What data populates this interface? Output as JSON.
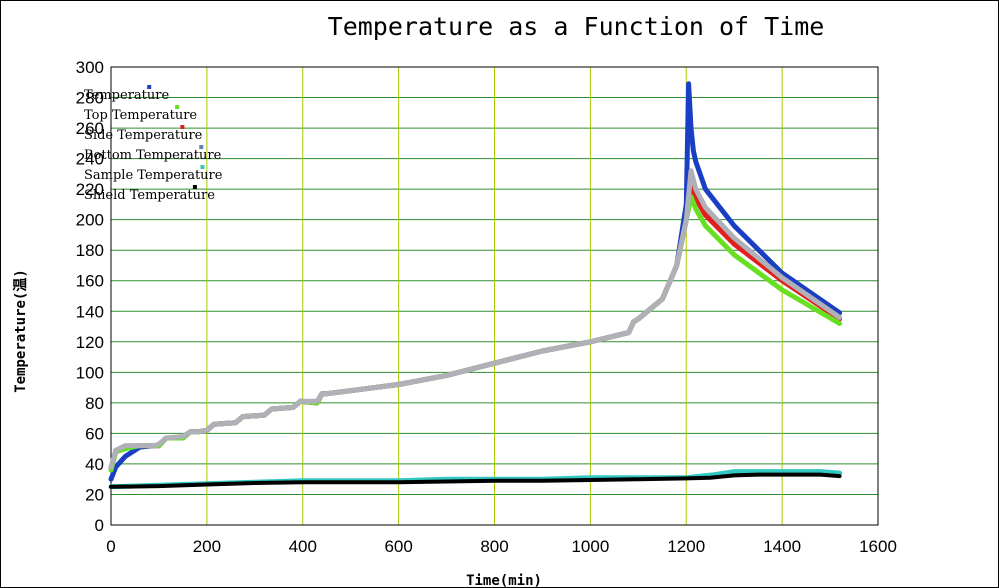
{
  "chart_data": {
    "type": "line",
    "title": "Temperature  as a Function of Time",
    "xlabel": "Time(min)",
    "ylabel": "Temperature(温)",
    "xlim": [
      0,
      1600
    ],
    "ylim": [
      0,
      300
    ],
    "x_ticks": [
      0,
      200,
      400,
      600,
      800,
      1000,
      1200,
      1400,
      1600
    ],
    "y_ticks": [
      0,
      20,
      40,
      60,
      80,
      100,
      120,
      140,
      160,
      180,
      200,
      220,
      240,
      260,
      280,
      300
    ],
    "grid": true,
    "grid_colors": {
      "vertical": "#a8c800",
      "horizontal": "#2f8f2f"
    },
    "legend_position": "top-left",
    "series": [
      {
        "name": "Temperature",
        "color": "#1a3fc4",
        "x": [
          0,
          10,
          30,
          60,
          90,
          100,
          115,
          150,
          165,
          180,
          200,
          215,
          260,
          275,
          320,
          335,
          380,
          395,
          430,
          440,
          450,
          500,
          600,
          700,
          800,
          900,
          1000,
          1080,
          1090,
          1100,
          1150,
          1180,
          1200,
          1205,
          1210,
          1215,
          1220,
          1240,
          1300,
          1400,
          1520
        ],
        "y": [
          30,
          38,
          45,
          51,
          52,
          52,
          57,
          57,
          61,
          61,
          62,
          66,
          67,
          71,
          72,
          76,
          77,
          81,
          80,
          86,
          86,
          88,
          92,
          98,
          106,
          114,
          120,
          126,
          133,
          135,
          148,
          170,
          210,
          289,
          260,
          245,
          238,
          220,
          196,
          165,
          139
        ]
      },
      {
        "name": "Top Temperature",
        "color": "#66e020",
        "x": [
          0,
          10,
          30,
          60,
          90,
          100,
          115,
          150,
          165,
          180,
          200,
          215,
          260,
          275,
          320,
          335,
          380,
          395,
          430,
          440,
          450,
          500,
          600,
          700,
          800,
          900,
          1000,
          1080,
          1090,
          1100,
          1150,
          1180,
          1200,
          1210,
          1220,
          1240,
          1300,
          1400,
          1520
        ],
        "y": [
          36,
          48,
          50,
          52,
          52,
          52,
          57,
          57,
          61,
          61,
          62,
          66,
          67,
          71,
          72,
          76,
          77,
          81,
          80,
          86,
          86,
          88,
          92,
          98,
          106,
          114,
          120,
          126,
          133,
          135,
          148,
          170,
          200,
          215,
          207,
          196,
          177,
          154,
          132
        ]
      },
      {
        "name": "Side Temperature",
        "color": "#e02020",
        "x": [
          0,
          10,
          30,
          60,
          90,
          100,
          115,
          150,
          165,
          180,
          200,
          215,
          260,
          275,
          320,
          335,
          380,
          395,
          430,
          440,
          450,
          500,
          600,
          700,
          800,
          900,
          1000,
          1080,
          1090,
          1100,
          1150,
          1180,
          1200,
          1210,
          1220,
          1240,
          1300,
          1400,
          1520
        ],
        "y": [
          37,
          48,
          51,
          52,
          52,
          52,
          57,
          57,
          61,
          61,
          62,
          66,
          67,
          71,
          72,
          76,
          77,
          81,
          80,
          86,
          86,
          88,
          92,
          98,
          106,
          114,
          120,
          126,
          133,
          135,
          148,
          170,
          200,
          223,
          214,
          203,
          184,
          160,
          135
        ]
      },
      {
        "name": "Bottom Temperature",
        "color": "#6080b8",
        "x": [
          0,
          10,
          30,
          60,
          90,
          100,
          115,
          150,
          165,
          180,
          200,
          215,
          260,
          275,
          320,
          335,
          380,
          395,
          430,
          440,
          450,
          500,
          600,
          700,
          800,
          900,
          1000,
          1080,
          1090,
          1100,
          1150,
          1180,
          1200,
          1210,
          1220,
          1240,
          1300,
          1400,
          1520
        ],
        "y": [
          37,
          49,
          51,
          52,
          52,
          52,
          57,
          57,
          61,
          61,
          62,
          66,
          67,
          71,
          72,
          76,
          77,
          81,
          80,
          86,
          86,
          88,
          92,
          98,
          106,
          114,
          120,
          126,
          133,
          135,
          148,
          170,
          200,
          227,
          218,
          207,
          187,
          162,
          136
        ]
      },
      {
        "name": "Sample Temperature",
        "color": "#30c8c0",
        "x": [
          0,
          100,
          200,
          300,
          400,
          500,
          600,
          700,
          800,
          900,
          1000,
          1100,
          1200,
          1260,
          1300,
          1350,
          1400,
          1480,
          1520
        ],
        "y": [
          25,
          26,
          27,
          28,
          29,
          29,
          29,
          30,
          30,
          30,
          31,
          31,
          31,
          33,
          35,
          35,
          35,
          35,
          34
        ]
      },
      {
        "name": "Shield Temperature",
        "color": "#000000",
        "x": [
          0,
          100,
          200,
          300,
          400,
          500,
          600,
          700,
          800,
          900,
          1000,
          1100,
          1200,
          1250,
          1300,
          1350,
          1400,
          1480,
          1520
        ],
        "y": [
          25,
          25.5,
          26.5,
          27.5,
          28,
          28,
          28,
          28.5,
          29,
          29,
          29.5,
          30,
          30.5,
          31,
          32.5,
          33,
          33,
          33,
          32
        ]
      },
      {
        "name": "",
        "color": "#b0b0b8",
        "x": [
          0,
          10,
          30,
          60,
          90,
          100,
          115,
          150,
          165,
          180,
          200,
          215,
          260,
          275,
          320,
          335,
          380,
          395,
          430,
          440,
          450,
          500,
          600,
          700,
          800,
          900,
          1000,
          1080,
          1090,
          1100,
          1150,
          1180,
          1200,
          1210,
          1220,
          1240,
          1300,
          1400,
          1520
        ],
        "y": [
          38,
          49,
          52,
          52,
          52,
          53,
          57,
          58,
          61,
          61,
          62,
          66,
          67,
          71,
          72,
          76,
          77,
          81,
          81,
          86,
          86,
          88,
          92,
          98,
          106,
          114,
          120,
          126,
          133,
          135,
          148,
          170,
          200,
          232,
          220,
          208,
          188,
          162,
          136
        ]
      }
    ]
  }
}
